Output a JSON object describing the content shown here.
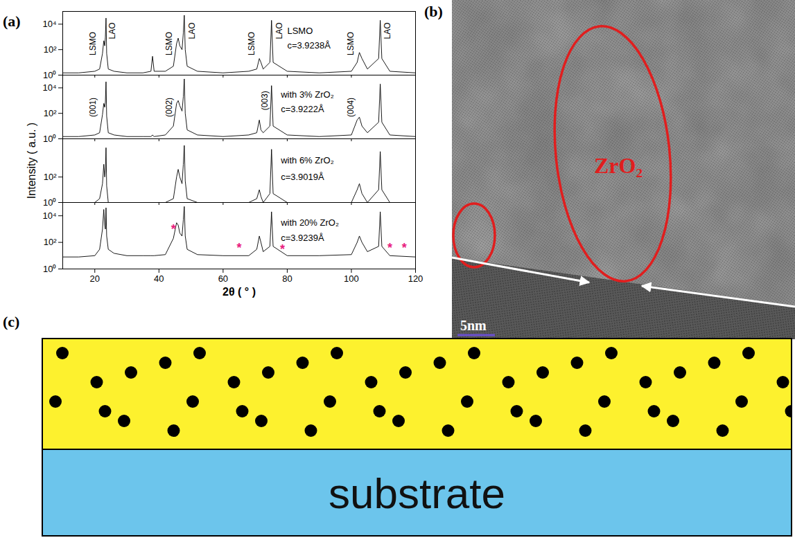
{
  "shared": {
    "panel_label": "(a)",
    "y_label": "Intensity ( a.u. )"
  },
  "chart_data": [
    {
      "type": "line",
      "log": "y",
      "tick_labels": "y",
      "color": "#000000",
      "xlim": [
        10,
        120
      ],
      "xticks": [
        20,
        40,
        60,
        80,
        100,
        120
      ],
      "ylim": [
        1,
        100000
      ],
      "yticks": [
        {
          "value": 1,
          "label": "10⁰"
        },
        {
          "value": 100,
          "label": "10²"
        },
        {
          "value": 10000,
          "label": "10⁴"
        }
      ],
      "x": [
        10,
        15,
        20,
        21.5,
        22.4,
        22.8,
        23.1,
        23.3,
        23.5,
        23.7,
        24.2,
        26,
        30,
        35,
        37.5,
        38,
        38.5,
        42,
        44.5,
        45.5,
        46,
        46.5,
        47.2,
        47.6,
        47.9,
        48.2,
        48.8,
        52,
        60,
        68,
        70.5,
        71.3,
        71.8,
        72.5,
        74.6,
        75.1,
        75.6,
        80,
        90,
        100,
        101.8,
        102.5,
        103.3,
        105,
        108.5,
        109,
        109.5,
        112,
        120
      ],
      "values": [
        1.5,
        1.5,
        2,
        3,
        50,
        500,
        200,
        1000,
        30000,
        50,
        3,
        2,
        1.5,
        1.5,
        2,
        30,
        2,
        2,
        5,
        300,
        800,
        200,
        100,
        2000,
        50000,
        100,
        5,
        2,
        1.5,
        2,
        3,
        20,
        10,
        3,
        10,
        20000,
        10,
        2,
        1.5,
        2,
        10,
        60,
        20,
        3,
        20,
        20000,
        20,
        2,
        1.5
      ],
      "peak_labels": [
        {
          "text": "LSMO",
          "x": 19.5,
          "y": 300
        },
        {
          "text": "LAO",
          "x": 25.5,
          "y": 3000
        },
        {
          "text": "LSMO",
          "x": 43.2,
          "y": 300
        },
        {
          "text": "LAO",
          "x": 50.3,
          "y": 3000
        },
        {
          "text": "LSMO",
          "x": 69,
          "y": 300
        },
        {
          "text": "LAO",
          "x": 77.5,
          "y": 3000
        },
        {
          "text": "LSMO",
          "x": 99.8,
          "y": 300
        },
        {
          "text": "LAO",
          "x": 111.3,
          "y": 3000
        }
      ],
      "notes": [
        {
          "text": "LSMO",
          "x": 80,
          "y": 3000
        },
        {
          "text": "c=3.9238Å",
          "x": 80,
          "y": 200
        }
      ]
    },
    {
      "type": "line",
      "log": "y",
      "tick_labels": "y",
      "color": "#000000",
      "xlim": [
        10,
        120
      ],
      "xticks": [
        20,
        40,
        60,
        80,
        100,
        120
      ],
      "ylim": [
        1,
        100000
      ],
      "yticks": [
        {
          "value": 1,
          "label": "10⁰"
        },
        {
          "value": 100,
          "label": "10²"
        },
        {
          "value": 10000,
          "label": "10⁴"
        }
      ],
      "x": [
        10,
        15,
        20,
        21.5,
        22.4,
        22.8,
        23.1,
        23.3,
        23.5,
        23.7,
        24.2,
        26,
        30,
        35,
        37.5,
        38,
        38.5,
        42,
        44.5,
        45.5,
        46,
        46.5,
        47.2,
        47.6,
        47.9,
        48.2,
        48.8,
        52,
        60,
        68,
        70.5,
        71.3,
        71.8,
        72.5,
        74.6,
        75.1,
        75.6,
        80,
        90,
        100,
        101.8,
        102.5,
        103.3,
        105,
        108.5,
        109,
        109.5,
        112,
        120
      ],
      "values": [
        1.5,
        1.5,
        2,
        3,
        80,
        600,
        300,
        800,
        30000,
        60,
        3,
        2,
        1.5,
        1.5,
        1.5,
        2,
        1.5,
        2,
        10,
        600,
        1000,
        400,
        150,
        2000,
        50000,
        100,
        5,
        2,
        1.5,
        2,
        3,
        30,
        5,
        3,
        10,
        15000,
        10,
        2,
        1.5,
        2,
        30,
        50,
        10,
        3,
        20,
        20000,
        20,
        2,
        1.5
      ],
      "peak_labels": [
        {
          "text": "(001)",
          "x": 19.5,
          "y": 300
        },
        {
          "text": "(002)",
          "x": 43.2,
          "y": 300
        },
        {
          "text": "(003)",
          "x": 73,
          "y": 1000
        },
        {
          "text": "(004)",
          "x": 99.8,
          "y": 300
        }
      ],
      "notes": [
        {
          "text": "with 3% ZrO₂",
          "x": 78,
          "y": 3000
        },
        {
          "text": "c=3.9222Å",
          "x": 78,
          "y": 200
        }
      ]
    },
    {
      "type": "line",
      "log": "y",
      "tick_labels": "y",
      "color": "#000000",
      "xlim": [
        10,
        120
      ],
      "xticks": [
        20,
        40,
        60,
        80,
        100,
        120
      ],
      "ylim": [
        1,
        100000
      ],
      "yticks": [
        {
          "value": 1,
          "label": "10⁰"
        },
        {
          "value": 100,
          "label": "10²"
        }
      ],
      "x": [
        10,
        15,
        20,
        21.5,
        22.4,
        22.8,
        23.1,
        23.3,
        23.5,
        23.7,
        24.2,
        26,
        30,
        35,
        37.5,
        38,
        38.5,
        42,
        44.5,
        45.5,
        46,
        46.5,
        47.2,
        47.6,
        47.9,
        48.2,
        48.8,
        52,
        60,
        68,
        70.5,
        71.3,
        71.8,
        72.5,
        74.6,
        75.1,
        75.6,
        80,
        90,
        100,
        101.8,
        102.5,
        103.3,
        105,
        108.5,
        109,
        109.5,
        112,
        120
      ],
      "values": [
        1,
        1,
        1,
        2,
        30,
        1000,
        100,
        300,
        20000,
        20,
        1,
        1,
        1,
        1,
        1,
        1,
        1,
        1,
        2,
        100,
        400,
        100,
        30,
        1000,
        30000,
        50,
        2,
        1,
        1,
        1,
        2,
        10,
        3,
        1,
        5,
        15000,
        5,
        1,
        1,
        1,
        10,
        30,
        5,
        1,
        10,
        10000,
        10,
        1,
        1
      ],
      "notes": [
        {
          "text": "with 6% ZrO₂",
          "x": 78,
          "y": 2000
        },
        {
          "text": "c=3.9019Å",
          "x": 78,
          "y": 100
        }
      ]
    },
    {
      "type": "line",
      "log": "y",
      "color": "#000000",
      "x_label": "2θ ( ° )",
      "xlim": [
        10,
        120
      ],
      "xticks": [
        20,
        40,
        60,
        80,
        100,
        120
      ],
      "ylim": [
        1,
        100000
      ],
      "yticks": [
        {
          "value": 1,
          "label": "10⁰"
        },
        {
          "value": 100,
          "label": "10²"
        },
        {
          "value": 10000,
          "label": "10⁴"
        }
      ],
      "x": [
        10,
        15,
        20,
        21.5,
        22.4,
        22.8,
        23.1,
        23.3,
        23.5,
        23.7,
        24.2,
        26,
        30,
        35,
        37.5,
        38,
        38.5,
        42,
        44.5,
        45.5,
        46,
        46.5,
        47.2,
        47.6,
        47.9,
        48.2,
        48.8,
        52,
        60,
        68,
        70.5,
        71.3,
        71.8,
        72.5,
        74.6,
        75.1,
        75.6,
        80,
        90,
        100,
        101.8,
        102.5,
        103.3,
        105,
        108.5,
        109,
        109.5,
        112,
        120
      ],
      "values": [
        8,
        8,
        10,
        30,
        1000,
        30000,
        2000,
        1000,
        40000,
        300,
        30,
        15,
        10,
        10,
        10,
        10,
        10,
        12,
        200,
        3000,
        2000,
        500,
        300,
        5000,
        50000,
        300,
        30,
        12,
        10,
        10,
        30,
        300,
        100,
        20,
        50,
        20000,
        50,
        10,
        10,
        12,
        100,
        300,
        100,
        20,
        50,
        20000,
        50,
        10,
        8
      ],
      "notes": [
        {
          "text": "with 20% ZrO₂",
          "x": 78,
          "y": 3000
        },
        {
          "text": "c=3.9239Å",
          "x": 78,
          "y": 200
        }
      ],
      "markers": {
        "text": "*",
        "color": "#e8207f",
        "x": [
          44.5,
          65,
          78.5,
          112,
          116.5
        ],
        "y": [
          1000,
          40,
          30,
          40,
          40
        ]
      }
    }
  ],
  "tem_image": {
    "panel_label": "(b)",
    "region_label": "ZrO₂",
    "scale_bar": "5nm"
  },
  "schematic": {
    "panel_label": "(c)",
    "substrate_label": "substrate"
  }
}
